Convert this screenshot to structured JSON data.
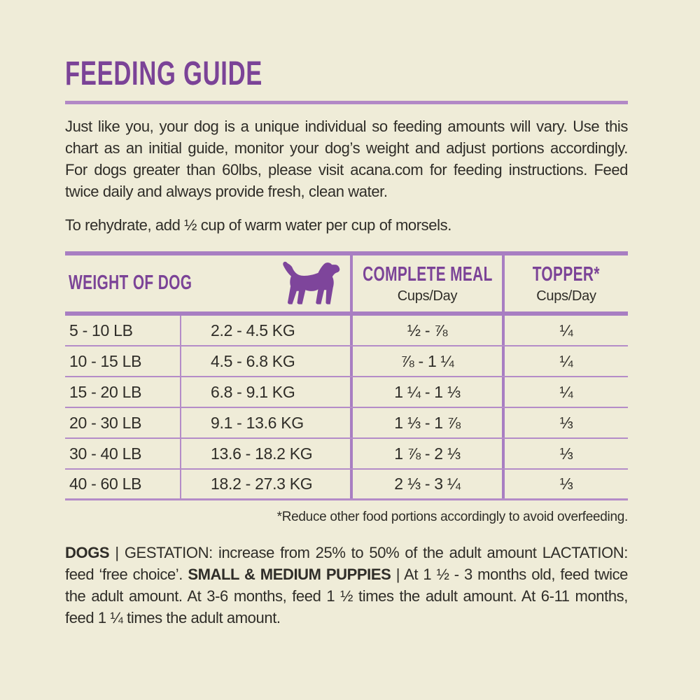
{
  "page": {
    "title": "FEEDING GUIDE",
    "intro": "Just like you, your dog is a unique individual so feeding amounts will vary. Use this chart as an initial guide, monitor your dog’s weight and adjust portions accordingly. For dogs greater than 60lbs, please visit acana.com for feeding instructions. Feed twice daily and always provide fresh, clean water.",
    "rehydrate_note": "To rehydrate, add ½ cup of warm water per cup of morsels.",
    "footnote": "*Reduce other food portions accordingly to avoid overfeeding."
  },
  "colors": {
    "background": "#EFECD8",
    "brand_purple": "#7B4397",
    "border_purple": "#A87EC2",
    "divider_purple": "#B48CC8",
    "text": "#2F2D28"
  },
  "table": {
    "header": {
      "weight_label": "WEIGHT OF DOG",
      "dog_icon": "dog-silhouette-icon",
      "complete_meal_label": "COMPLETE MEAL",
      "complete_meal_unit": "Cups/Day",
      "topper_label": "TOPPER*",
      "topper_unit": "Cups/Day"
    },
    "rows": [
      {
        "lb": "5 - 10 LB",
        "kg": "2.2 - 4.5 KG",
        "meal": "½ - ⅞",
        "topper": "¼"
      },
      {
        "lb": "10 - 15 LB",
        "kg": "4.5 - 6.8 KG",
        "meal": "⅞ - 1 ¼",
        "topper": "¼"
      },
      {
        "lb": "15 - 20 LB",
        "kg": "6.8 - 9.1 KG",
        "meal": "1 ¼ - 1 ⅓",
        "topper": "¼"
      },
      {
        "lb": "20 - 30 LB",
        "kg": "9.1 - 13.6 KG",
        "meal": "1 ⅓ - 1 ⅞",
        "topper": "⅓"
      },
      {
        "lb": "30 - 40 LB",
        "kg": "13.6 - 18.2 KG",
        "meal": "1 ⅞ - 2 ⅓",
        "topper": "⅓"
      },
      {
        "lb": "40 - 60 LB",
        "kg": "18.2 - 27.3 KG",
        "meal": "2 ⅓ - 3 ¼",
        "topper": "⅓"
      }
    ]
  },
  "notes": {
    "segments": [
      {
        "text": "DOGS",
        "bold": true
      },
      {
        "text": " | GESTATION: increase from 25% to 50% of the adult amount LACTATION: feed ‘free choice’. ",
        "bold": false
      },
      {
        "text": "SMALL & MEDIUM PUPPIES",
        "bold": true
      },
      {
        "text": " | At 1 ½ - 3 months old, feed twice the adult amount. At 3-6 months, feed 1 ½ times the adult amount. At 6-11 months, feed 1 ¼ times the adult amount.",
        "bold": false
      }
    ]
  }
}
